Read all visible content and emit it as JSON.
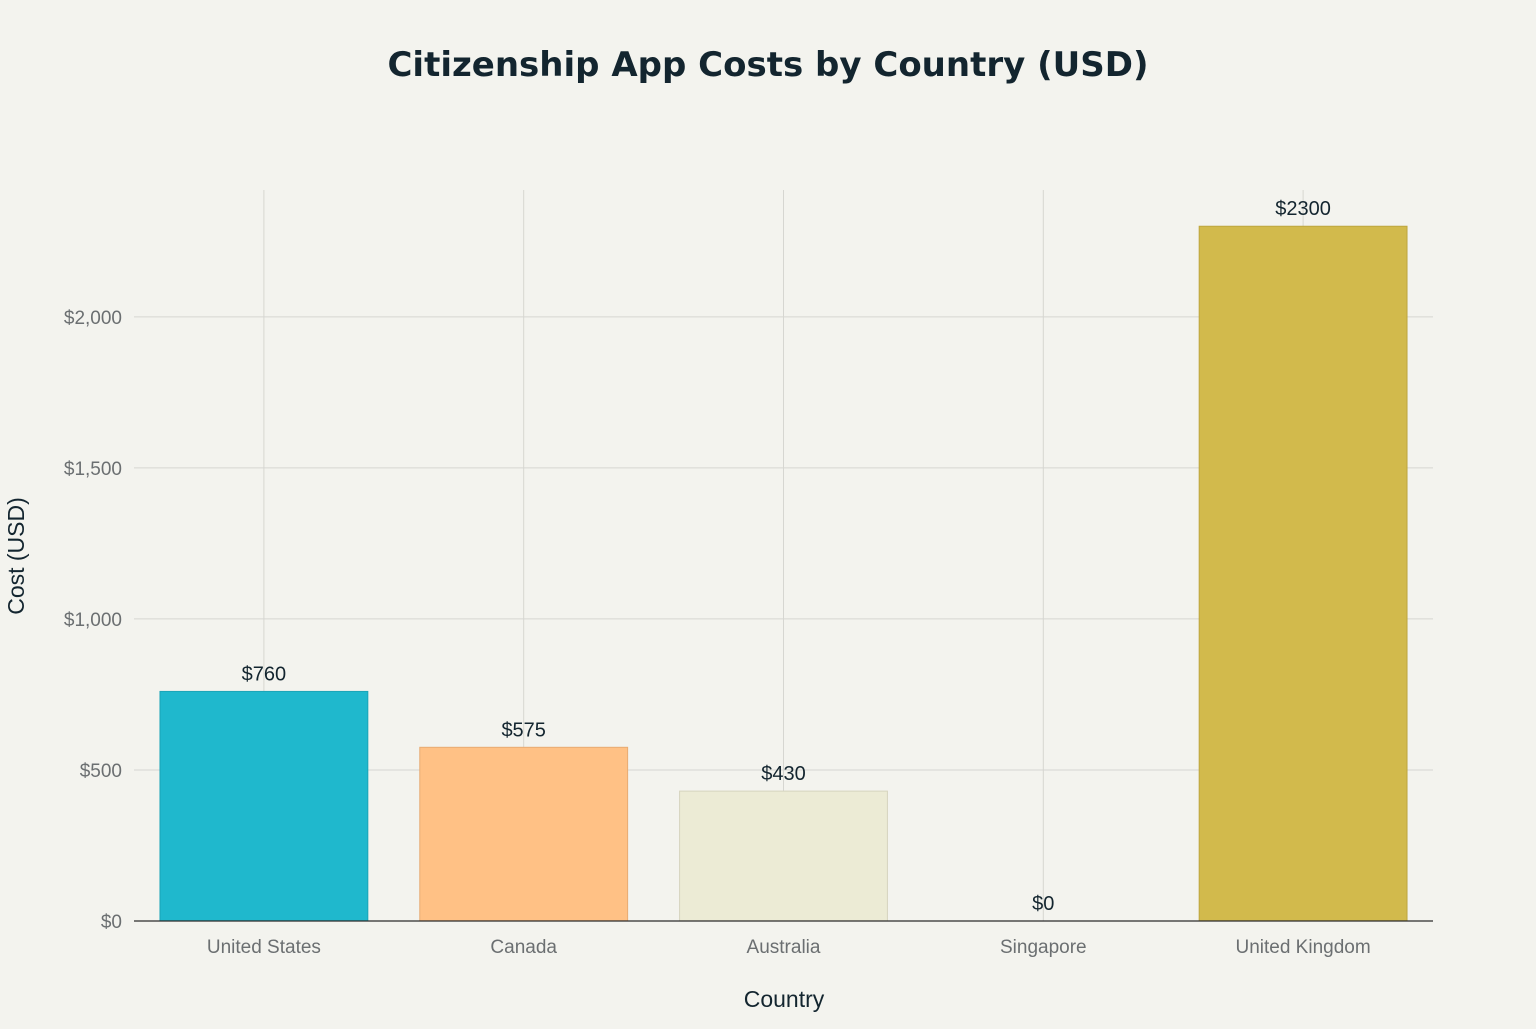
{
  "chart_data": {
    "type": "bar",
    "title": "Citizenship App Costs by Country (USD)",
    "xlabel": "Country",
    "ylabel": "Cost (USD)",
    "categories": [
      "United States",
      "Canada",
      "Australia",
      "Singapore",
      "United Kingdom"
    ],
    "values": [
      760,
      575,
      430,
      0,
      2300
    ],
    "data_labels": [
      "$760",
      "$575",
      "$430",
      "$0",
      "$2300"
    ],
    "colors": [
      "#1fb8cd",
      "#ffc185",
      "#eceBd5",
      "#5d878f",
      "#d2ba4c"
    ],
    "bar_stroke_colors": [
      "#1ba5b8",
      "#e8ab73",
      "#d6d4be",
      "#4f767d",
      "#bda63f"
    ],
    "ylim": [
      0,
      2420
    ],
    "yticks": [
      0,
      500,
      1000,
      1500,
      2000
    ],
    "ytick_labels": [
      "$0",
      "$500",
      "$1,000",
      "$1,500",
      "$2,000"
    ],
    "grid": true,
    "legend": "none"
  }
}
